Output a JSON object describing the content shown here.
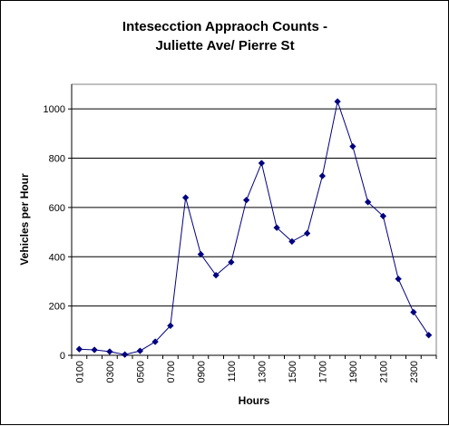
{
  "chart_data": {
    "type": "line",
    "title_lines": [
      "Intesecction Appraoch Counts -",
      "Juliette Ave/ Pierre St"
    ],
    "xlabel": "Hours",
    "ylabel": "Vehicles per Hour",
    "ylim": [
      0,
      1100
    ],
    "yticks": [
      0,
      200,
      400,
      600,
      800,
      1000
    ],
    "grid": true,
    "categories": [
      "0100",
      "0200",
      "0300",
      "0400",
      "0500",
      "0600",
      "0700",
      "0800",
      "0900",
      "1000",
      "1100",
      "1200",
      "1300",
      "1400",
      "1500",
      "1600",
      "1700",
      "1800",
      "1900",
      "2000",
      "2100",
      "2200",
      "2300",
      "2400"
    ],
    "xtick_labels": [
      "0100",
      "0300",
      "0500",
      "0700",
      "0900",
      "1100",
      "1300",
      "1500",
      "1700",
      "1900",
      "2100",
      "2300"
    ],
    "series": [
      {
        "values": [
          25,
          22,
          15,
          3,
          18,
          55,
          120,
          640,
          410,
          325,
          378,
          630,
          780,
          518,
          462,
          495,
          728,
          1030,
          848,
          622,
          565,
          310,
          175,
          82
        ],
        "color": "#00007f"
      }
    ]
  }
}
